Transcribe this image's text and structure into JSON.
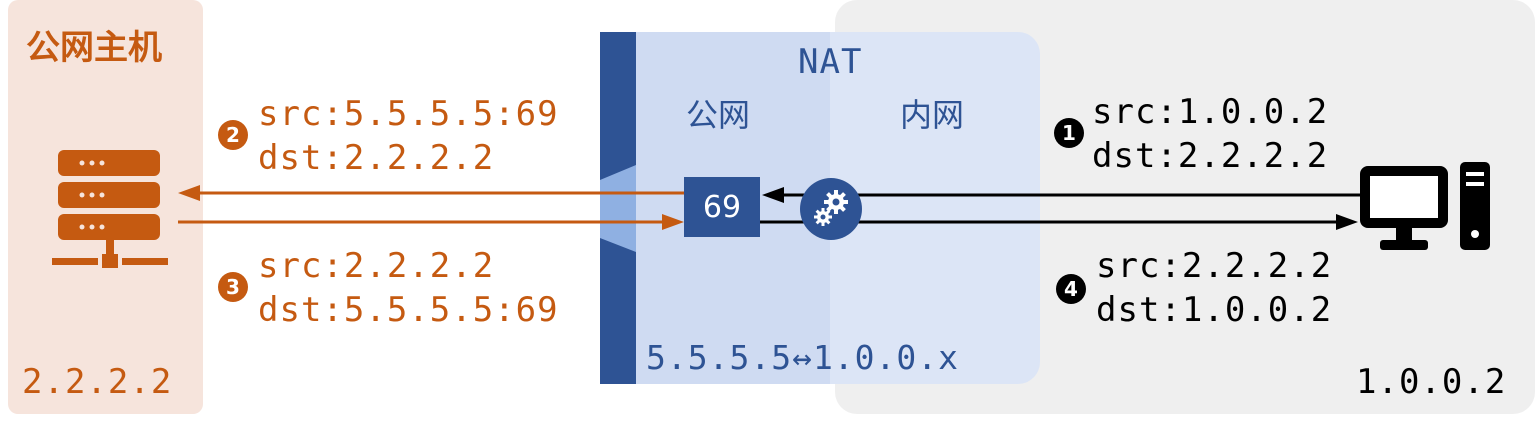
{
  "public_host": {
    "title": "公网主机",
    "ip": "2.2.2.2"
  },
  "nat": {
    "title": "NAT",
    "side_public": "公网",
    "side_private": "内网",
    "mapping": "5.5.5.5↔1.0.0.x",
    "port": "69"
  },
  "private_host": {
    "ip": "1.0.0.2"
  },
  "steps": [
    {
      "badge": "1",
      "src": "src:1.0.0.2",
      "dst": "dst:2.2.2.2"
    },
    {
      "badge": "2",
      "src": "src:5.5.5.5:69",
      "dst": "dst:2.2.2.2"
    },
    {
      "badge": "3",
      "src": "src:2.2.2.2",
      "dst": "dst:5.5.5.5:69"
    },
    {
      "badge": "4",
      "src": "src:2.2.2.2",
      "dst": "dst:1.0.0.2"
    }
  ],
  "colors": {
    "public": "#c55a11",
    "public_bg": "#f6e4dc",
    "nat": "#2e5394",
    "nat_bg": "#dce5f6",
    "private_bg": "#efefef"
  },
  "icons": [
    "server-icon",
    "computer-icon",
    "gear-icon"
  ]
}
